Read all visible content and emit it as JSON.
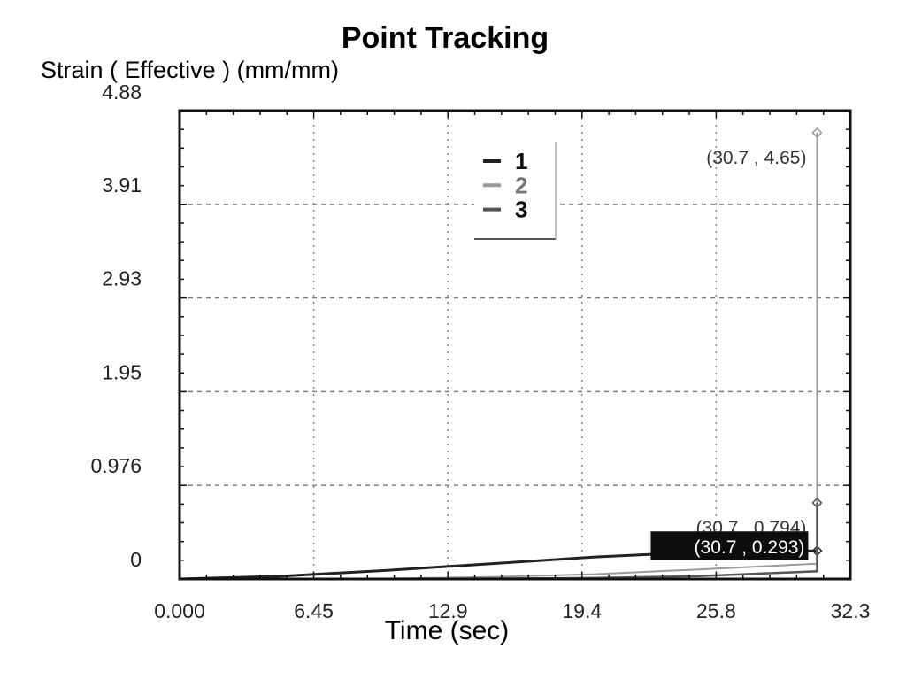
{
  "chart_data": {
    "type": "line",
    "title": "Point Tracking",
    "ylabel": "Strain ( Effective ) (mm/mm)",
    "xlabel": "Time (sec)",
    "xlim": [
      0,
      32.3
    ],
    "ylim": [
      0,
      4.88
    ],
    "x_ticks": [
      "0.000",
      "6.45",
      "12.9",
      "19.4",
      "25.8",
      "32.3"
    ],
    "y_ticks": [
      "0",
      "0.976",
      "1.95",
      "2.93",
      "3.91",
      "4.88"
    ],
    "grid": true,
    "legend_placement": "top-center",
    "series": [
      {
        "name": "1",
        "color": "#222222",
        "x": [
          0,
          5,
          10,
          15,
          20,
          25,
          30.7
        ],
        "y": [
          0,
          0.03,
          0.09,
          0.16,
          0.23,
          0.28,
          0.293
        ]
      },
      {
        "name": "2",
        "color": "#999999",
        "x": [
          0,
          5,
          10,
          15,
          20,
          25,
          30.7,
          30.7
        ],
        "y": [
          0,
          0,
          0.005,
          0.02,
          0.05,
          0.1,
          0.16,
          4.65
        ]
      },
      {
        "name": "3",
        "color": "#555555",
        "x": [
          0,
          5,
          10,
          15,
          20,
          25,
          30.7,
          30.7
        ],
        "y": [
          0,
          0,
          0,
          0.005,
          0.01,
          0.03,
          0.08,
          0.794
        ]
      }
    ],
    "annotations": [
      {
        "text": "(30.7 , 4.65)",
        "x": 30.7,
        "y": 4.65,
        "style": "plain"
      },
      {
        "text": "(30.7 , 0.794)",
        "x": 30.7,
        "y": 0.794,
        "style": "plain"
      },
      {
        "text": "(30.7 , 0.293)",
        "x": 30.7,
        "y": 0.293,
        "style": "highlight"
      }
    ]
  }
}
